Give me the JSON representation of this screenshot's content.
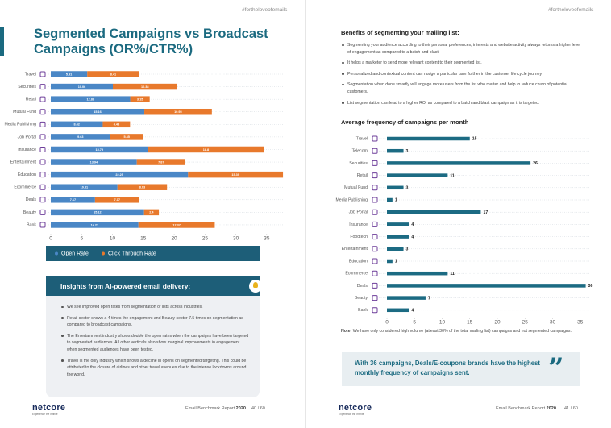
{
  "pages": [
    {
      "hashtag": "#fortheloveofemails",
      "footer": {
        "logo": "netcore",
        "tagline": "Experience the Infinite",
        "report": "Email Benchmark Report",
        "year": "2020",
        "page": "40 / 60"
      }
    },
    {
      "hashtag": "#fortheloveofemails",
      "footer": {
        "logo": "netcore",
        "tagline": "Experience the Infinite",
        "report": "Email Benchmark Report",
        "year": "2020",
        "page": "41 / 60"
      }
    }
  ],
  "insights": {
    "heading": "Insights from AI-powered email delivery:",
    "bullets": [
      "We see improved open rates from segmentation of lists across industries.",
      "Retail sector shows a 4 times the engagement and Beauty sector 7.5 times on segmentation as compared to broadcast campaigns.",
      "The Entertainment industry shows double the open rates when the campaigns have been targeted to segmented audiences. All other verticals also show marginal improvements in engagement when segmented audiences have been tested.",
      "Travel is the only industry which shows a decline in opens on segmented targeting. This could be attributed to the closure of airlines and other travel avenues due to the intense lockdowns around the world."
    ]
  },
  "benefits": {
    "heading": "Benefits of segmenting your mailing list:",
    "bullets": [
      "Segmenting your audience according to their personal preferences, interests and website activity always returns a higher level of engagement as compared to a batch and blast.",
      "It helps a marketer to send more relevant content to their segmented list.",
      "Personalized and contextual content can nudge a particular user further in the customer life cycle journey.",
      "Segmentation when done smartly will engage more users from the list who matter and help to reduce churn of potential customers.",
      "List segmentation can lead to a higher ROI as compared to a batch and blast campaign as it is targeted."
    ]
  },
  "note": {
    "label": "Note:",
    "text": "We have only considered high volume (atleast 30% of the total mailing list) campaigns and not segmented campaigns."
  },
  "callout": "With 36 campaigns, Deals/E-coupons brands have the highest monthly frequency of campaigns sent.",
  "chart_data": [
    {
      "type": "stacked_bar",
      "orientation": "horizontal",
      "title": "Segmented Campaigns vs Broadcast Campaigns (OR%/CTR%)",
      "categories": [
        "Travel",
        "Securities",
        "Retail",
        "Mutual Fund",
        "Media Publishing",
        "Job Portal",
        "Insurance",
        "Entertainment",
        "Education",
        "Ecommerce",
        "Deals",
        "Beauty",
        "Bank"
      ],
      "series": [
        {
          "name": "Open Rate",
          "color": "#4a87c6",
          "values": [
            5.91,
            10.06,
            12.88,
            15.16,
            8.42,
            9.63,
            15.75,
            13.94,
            22.25,
            10.81,
            7.17,
            15.12,
            14.21
          ]
        },
        {
          "name": "Click Through Rate",
          "color": "#e8792c",
          "values": [
            8.41,
            10.38,
            3.15,
            10.95,
            4.43,
            5.35,
            18.8,
            7.87,
            15.39,
            8.03,
            7.17,
            2.4,
            12.37
          ]
        }
      ],
      "xlim": [
        0,
        37.5
      ],
      "xticks": [
        0,
        5,
        10,
        15,
        20,
        25,
        30,
        35
      ]
    },
    {
      "type": "bar",
      "orientation": "horizontal",
      "title": "Average frequency of campaigns per month",
      "categories": [
        "Travel",
        "Telecom",
        "Securities",
        "Retail",
        "Mutual Fund",
        "Media Publishing",
        "Job Portal",
        "Insurance",
        "Foodtech",
        "Entertainment",
        "Education",
        "Ecommerce",
        "Deals",
        "Beauty",
        "Bank"
      ],
      "values": [
        15,
        3,
        26,
        11,
        3,
        1,
        17,
        4,
        4,
        3,
        1,
        11,
        36,
        7,
        4
      ],
      "color": "#1c6b83",
      "xlim": [
        0,
        36.5
      ],
      "xticks": [
        0,
        5,
        10,
        15,
        20,
        25,
        30,
        35
      ]
    }
  ]
}
